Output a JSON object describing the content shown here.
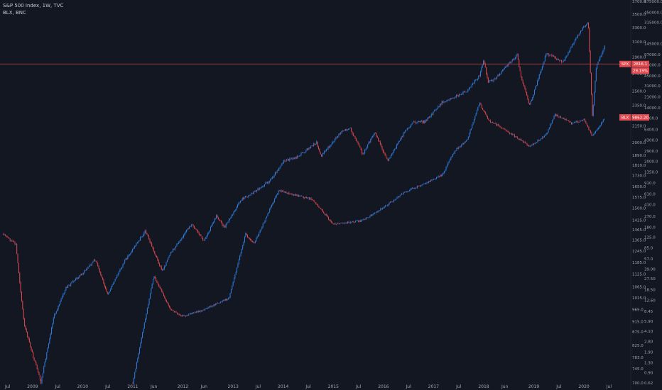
{
  "legend": {
    "main": "S&P 500 Index, 1W, TVC",
    "overlay": "BLX, BNC"
  },
  "colors": {
    "background": "#131722",
    "up": "#2f7fe3",
    "down": "#e0494f",
    "price_line": "#e0494f",
    "tag_red": "#e0494f"
  },
  "chart_data": {
    "type": "line",
    "title": "S&P 500 Index, 1W, TVC",
    "x_ticks": [
      "Jul",
      "2009",
      "Jul",
      "2010",
      "Jul",
      "2011",
      "Jun",
      "2012",
      "Jun",
      "2013",
      "Jul",
      "2014",
      "Jul",
      "2015",
      "Jul",
      "2016",
      "Jul",
      "2017",
      "Jul",
      "2018",
      "Jun",
      "2019",
      "Jul",
      "2020",
      "Jul"
    ],
    "y_ticks_left": [
      "3700.0",
      "3500.0",
      "3300.0",
      "3100.0",
      "2900.0",
      "2700.0",
      "2500.0",
      "2350.0",
      "2150.0",
      "2000.0",
      "1890.0",
      "1810.0",
      "1730.0",
      "1650.0",
      "1575.0",
      "1500.0",
      "1425.0",
      "1365.0",
      "1305.0",
      "1245.0",
      "1185.0",
      "1125.0",
      "1065.0",
      "1015.0",
      "965.0",
      "915.0",
      "875.0",
      "825.0",
      "783.0",
      "745.0",
      "700.0"
    ],
    "y_ticks_right": [
      "675000.0",
      "450000.0",
      "315000.0",
      "145000.0",
      "97000.0",
      "67000.0",
      "45000.0",
      "31000.0",
      "21000.0",
      "14000.0",
      "9600.0",
      "6400.0",
      "4300.0",
      "2900.0",
      "2000.0",
      "1350.0",
      "910.0",
      "610.0",
      "410.0",
      "270.0",
      "180.0",
      "125.0",
      "85.0",
      "57.0",
      "39.00",
      "27.50",
      "18.50",
      "12.60",
      "8.45",
      "5.90",
      "4.10",
      "2.80",
      "1.90",
      "1.30",
      "0.90",
      "0.62"
    ],
    "ylim_left": [
      700,
      3700
    ],
    "series": [
      {
        "name": "S&P 500 Index",
        "x": [
          "2008-06",
          "2008-09",
          "2008-11",
          "2009-03",
          "2009-06",
          "2009-09",
          "2010-01",
          "2010-04",
          "2010-07",
          "2010-11",
          "2011-04",
          "2011-08",
          "2011-10",
          "2012-03",
          "2012-06",
          "2012-09",
          "2012-11",
          "2013-03",
          "2013-06",
          "2013-10",
          "2014-01",
          "2014-04",
          "2014-09",
          "2014-10",
          "2015-03",
          "2015-05",
          "2015-08",
          "2015-11",
          "2016-02",
          "2016-06",
          "2016-08",
          "2016-11",
          "2017-03",
          "2017-06",
          "2017-09",
          "2017-12",
          "2018-01",
          "2018-02",
          "2018-04",
          "2018-09",
          "2018-10",
          "2018-12",
          "2019-04",
          "2019-06",
          "2019-08",
          "2019-11",
          "2020-02",
          "2020-03",
          "2020-04",
          "2020-06"
        ],
        "y": [
          1340,
          1280,
          900,
          700,
          930,
          1060,
          1130,
          1200,
          1030,
          1190,
          1360,
          1140,
          1230,
          1400,
          1300,
          1450,
          1380,
          1560,
          1610,
          1700,
          1840,
          1870,
          2000,
          1880,
          2100,
          2130,
          1900,
          2090,
          1840,
          2090,
          2180,
          2190,
          2380,
          2440,
          2500,
          2680,
          2870,
          2600,
          2650,
          2930,
          2650,
          2350,
          2950,
          2890,
          2840,
          3150,
          3390,
          2240,
          2800,
          3050
        ]
      },
      {
        "name": "BLX",
        "x": [
          "2011-01",
          "2011-06",
          "2011-10",
          "2012-01",
          "2012-06",
          "2012-12",
          "2013-04",
          "2013-06",
          "2013-12",
          "2014-02",
          "2014-08",
          "2015-01",
          "2015-08",
          "2016-01",
          "2016-06",
          "2016-12",
          "2017-03",
          "2017-06",
          "2017-09",
          "2017-12",
          "2018-02",
          "2018-06",
          "2018-12",
          "2019-04",
          "2019-06",
          "2019-10",
          "2020-01",
          "2020-03",
          "2020-06"
        ],
        "y": [
          0.62,
          31,
          9,
          7,
          9,
          13.5,
          140,
          100,
          700,
          620,
          500,
          200,
          230,
          370,
          650,
          960,
          1200,
          2900,
          4300,
          17000,
          9000,
          6400,
          3400,
          5300,
          11000,
          8000,
          9000,
          5000,
          9600
        ]
      }
    ],
    "price_labels": [
      {
        "series": "SPX",
        "symbol": "SPX",
        "value": "2816.1",
        "sub": "29.19%"
      },
      {
        "series": "BLX",
        "symbol": "BLX",
        "value": "9862.20"
      }
    ],
    "grid": false,
    "legend_position": "top-left"
  }
}
